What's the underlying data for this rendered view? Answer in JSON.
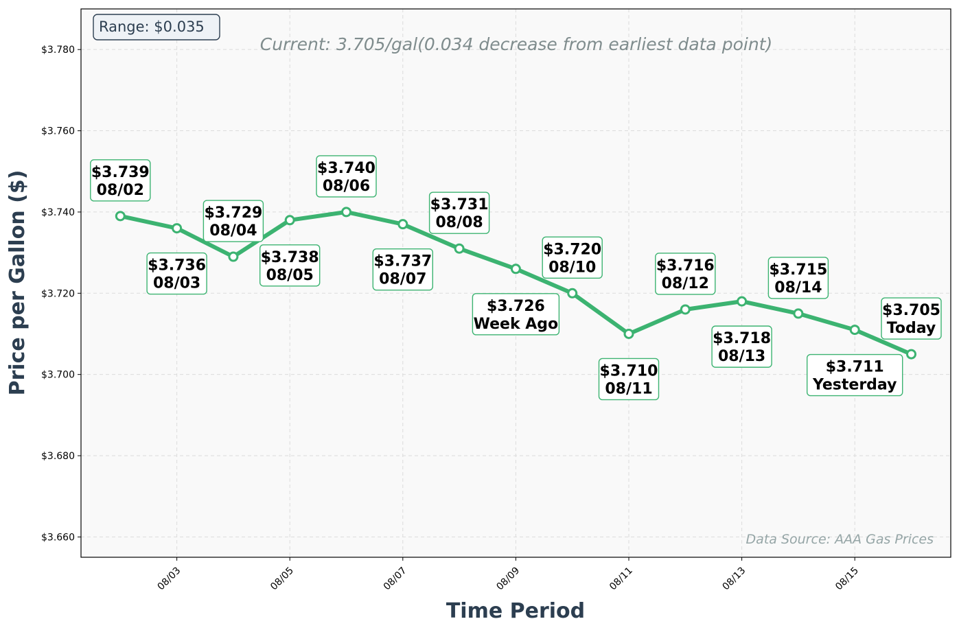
{
  "chart_data": {
    "type": "line",
    "subtitle": "Current: 3.705/gal(0.034 decrease from earliest data point)",
    "xlabel": "Time Period",
    "ylabel": "Price per Gallon ($)",
    "ylim": [
      3.655,
      3.79
    ],
    "yticks": [
      "$3.660",
      "$3.680",
      "$3.700",
      "$3.720",
      "$3.740",
      "$3.760",
      "$3.780"
    ],
    "ytick_values": [
      3.66,
      3.68,
      3.7,
      3.72,
      3.74,
      3.76,
      3.78
    ],
    "xticks": [
      "08/03",
      "08/05",
      "08/07",
      "08/09",
      "08/11",
      "08/13",
      "08/15"
    ],
    "xtick_values": [
      "08/03",
      "08/05",
      "08/07",
      "08/09",
      "08/11",
      "08/13",
      "08/15"
    ],
    "x": [
      "08/02",
      "08/03",
      "08/04",
      "08/05",
      "08/06",
      "08/07",
      "08/08",
      "08/09",
      "08/10",
      "08/11",
      "08/12",
      "08/13",
      "08/14",
      "08/15",
      "08/16"
    ],
    "series": [
      {
        "values": [
          3.739,
          3.736,
          3.729,
          3.738,
          3.74,
          3.737,
          3.731,
          3.726,
          3.72,
          3.71,
          3.716,
          3.718,
          3.715,
          3.711,
          3.705
        ]
      }
    ],
    "point_labels": [
      {
        "price": "$3.739",
        "tag": "08/02",
        "pos": "above"
      },
      {
        "price": "$3.736",
        "tag": "08/03",
        "pos": "below"
      },
      {
        "price": "$3.729",
        "tag": "08/04",
        "pos": "above"
      },
      {
        "price": "$3.738",
        "tag": "08/05",
        "pos": "below"
      },
      {
        "price": "$3.740",
        "tag": "08/06",
        "pos": "above"
      },
      {
        "price": "$3.737",
        "tag": "08/07",
        "pos": "below"
      },
      {
        "price": "$3.731",
        "tag": "08/08",
        "pos": "above"
      },
      {
        "price": "$3.726",
        "tag": "Week Ago",
        "pos": "below"
      },
      {
        "price": "$3.720",
        "tag": "08/10",
        "pos": "above"
      },
      {
        "price": "$3.710",
        "tag": "08/11",
        "pos": "below"
      },
      {
        "price": "$3.716",
        "tag": "08/12",
        "pos": "above"
      },
      {
        "price": "$3.718",
        "tag": "08/13",
        "pos": "below"
      },
      {
        "price": "$3.715",
        "tag": "08/14",
        "pos": "above"
      },
      {
        "price": "$3.711",
        "tag": "Yesterday",
        "pos": "below"
      },
      {
        "price": "$3.705",
        "tag": "Today",
        "pos": "above"
      }
    ],
    "range_label": "Range: $0.035",
    "source_note": "Data Source: AAA Gas Prices",
    "grid": true,
    "colors": {
      "line": "#3cb371",
      "marker_fill": "#ffffff",
      "plot_bg": "#f9f9f9",
      "axis_title": "#2c3e50",
      "range_box_bg": "#eef2f6"
    }
  }
}
